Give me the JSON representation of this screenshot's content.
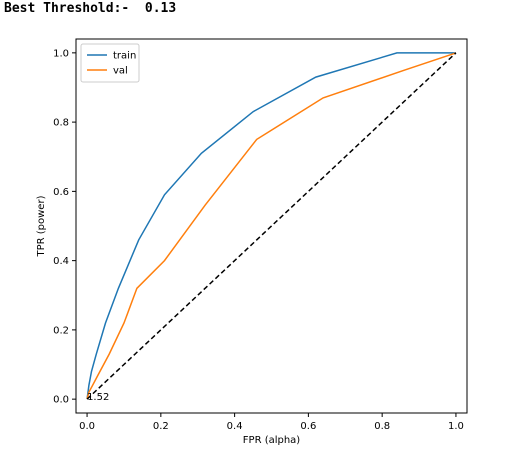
{
  "output": {
    "text": "Best Threshold:-  0.13"
  },
  "chart_data": {
    "type": "line",
    "title": "",
    "xlabel": "FPR (alpha)",
    "ylabel": "TPR (power)",
    "xlim": [
      -0.03,
      1.03
    ],
    "ylim": [
      -0.04,
      1.04
    ],
    "xticks": [
      0.0,
      0.2,
      0.4,
      0.6,
      0.8,
      1.0
    ],
    "yticks": [
      0.0,
      0.2,
      0.4,
      0.6,
      0.8,
      1.0
    ],
    "grid": false,
    "legend": "upper left",
    "series": [
      {
        "name": "train",
        "color": "#1f77b4",
        "x": [
          0.0,
          0.005,
          0.012,
          0.025,
          0.05,
          0.085,
          0.14,
          0.21,
          0.31,
          0.45,
          0.62,
          0.84,
          1.0
        ],
        "y": [
          0.0,
          0.04,
          0.08,
          0.13,
          0.22,
          0.32,
          0.46,
          0.59,
          0.71,
          0.83,
          0.93,
          1.0,
          1.0
        ]
      },
      {
        "name": "val",
        "color": "#ff7f0e",
        "x": [
          0.0,
          0.005,
          0.015,
          0.03,
          0.06,
          0.1,
          0.135,
          0.21,
          0.32,
          0.46,
          0.64,
          0.86,
          1.0
        ],
        "y": [
          0.0,
          0.02,
          0.04,
          0.07,
          0.13,
          0.22,
          0.32,
          0.4,
          0.56,
          0.75,
          0.87,
          0.95,
          1.0
        ]
      },
      {
        "name": "",
        "color": "#000000",
        "dashed": true,
        "x": [
          0.0,
          1.0
        ],
        "y": [
          0.0,
          1.0
        ]
      }
    ],
    "annotations": [
      {
        "text": "1.52",
        "x": 0.0,
        "y": 0.0
      }
    ]
  }
}
